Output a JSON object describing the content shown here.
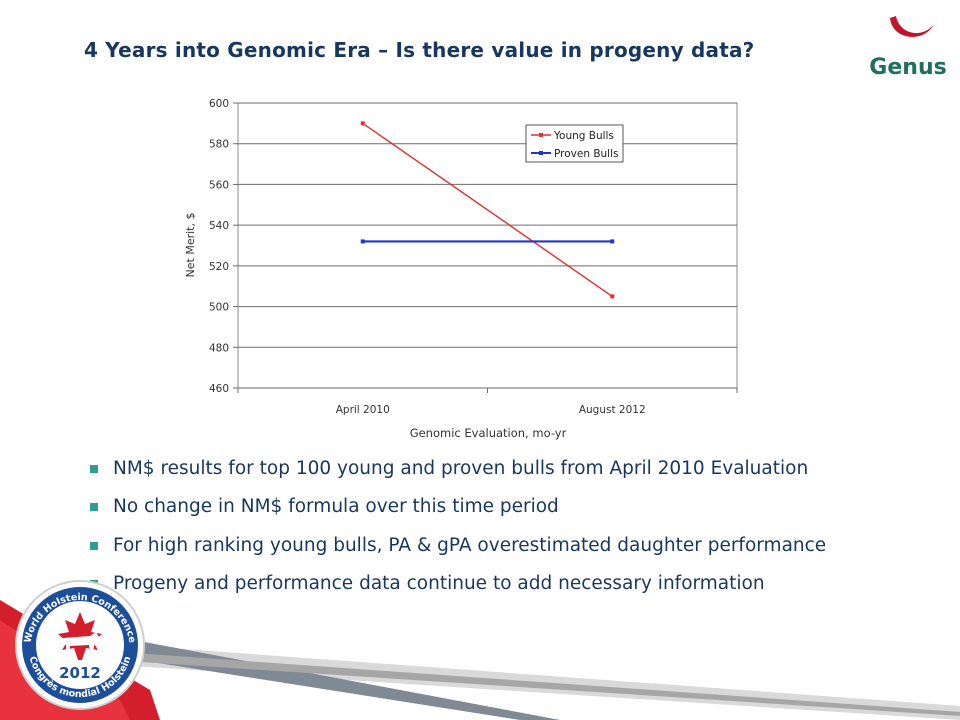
{
  "slide": {
    "title": "4 Years into Genomic Era – Is there value in progeny data?",
    "bullets": [
      "NM$ results for top 100 young and proven bulls from April 2010 Evaluation",
      "No change in NM$ formula over this time period",
      "For high ranking young bulls, PA & gPA overestimated daughter performance",
      "Progeny and performance data continue to add necessary information"
    ]
  },
  "logo": {
    "text": "Genus"
  },
  "badge": {
    "year": "2012",
    "top_text": "World Holstein Conference",
    "bottom_text": "Congrès mondial Holstein"
  },
  "colors": {
    "title": "#17375e",
    "bullet_square": "#2f9e8f",
    "logo_red": "#c0162c",
    "logo_green": "#1f6f5c"
  },
  "chart_data": {
    "type": "line",
    "categories": [
      "April 2010",
      "August 2012"
    ],
    "series": [
      {
        "name": "Young Bulls",
        "values": [
          590,
          505
        ],
        "color": "#e03232"
      },
      {
        "name": "Proven Bulls",
        "values": [
          532,
          532
        ],
        "color": "#1f35d0"
      }
    ],
    "xlabel": "Genomic Evaluation, mo-yr",
    "ylabel": "Net Merit, $",
    "ylim": [
      460,
      600
    ],
    "yticks": [
      600,
      580,
      560,
      540,
      520,
      500,
      480,
      460
    ],
    "grid": true,
    "legend": "top-right"
  }
}
